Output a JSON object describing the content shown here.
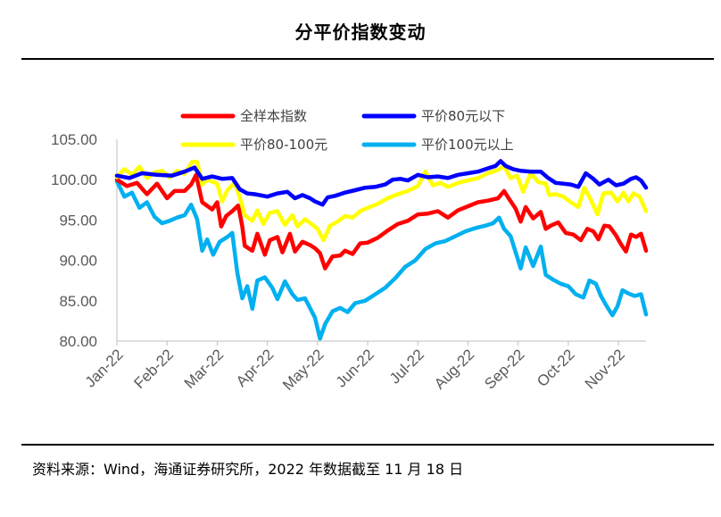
{
  "header": {
    "title": "分平价指数变动"
  },
  "footer": {
    "source": "资料来源：Wind，海通证券研究所，2022 年数据截至 11 月 18 日"
  },
  "chart_data": {
    "type": "line",
    "title": "分平价指数变动",
    "xlabel": "",
    "ylabel": "",
    "ylim": [
      80,
      105
    ],
    "yticks": [
      "80.00",
      "85.00",
      "90.00",
      "95.00",
      "100.00",
      "105.00"
    ],
    "x_categories": [
      "Jan-22",
      "Feb-22",
      "Mar-22",
      "Apr-22",
      "May-22",
      "Jun-22",
      "Jul-22",
      "Aug-22",
      "Sep-22",
      "Oct-22",
      "Nov-22"
    ],
    "x_range": [
      0,
      10.55
    ],
    "legend": {
      "placement": "top",
      "columns": 2
    },
    "series": [
      {
        "name": "全样本指数",
        "color": "#ff0000",
        "points": [
          [
            0,
            100
          ],
          [
            0.2,
            99.2
          ],
          [
            0.4,
            99.6
          ],
          [
            0.6,
            98.2
          ],
          [
            0.8,
            99.5
          ],
          [
            1.0,
            97.7
          ],
          [
            1.15,
            98.6
          ],
          [
            1.35,
            98.6
          ],
          [
            1.48,
            99.4
          ],
          [
            1.58,
            100.6
          ],
          [
            1.7,
            97.2
          ],
          [
            1.9,
            96.3
          ],
          [
            2.0,
            97.2
          ],
          [
            2.08,
            94.2
          ],
          [
            2.18,
            95.5
          ],
          [
            2.3,
            96.1
          ],
          [
            2.42,
            96.8
          ],
          [
            2.5,
            94.2
          ],
          [
            2.55,
            91.8
          ],
          [
            2.7,
            91.2
          ],
          [
            2.8,
            93.3
          ],
          [
            2.95,
            90.7
          ],
          [
            3.05,
            92.5
          ],
          [
            3.2,
            92.9
          ],
          [
            3.3,
            91.0
          ],
          [
            3.45,
            93.3
          ],
          [
            3.55,
            91.1
          ],
          [
            3.7,
            92.3
          ],
          [
            3.85,
            91.9
          ],
          [
            3.95,
            91.5
          ],
          [
            4.05,
            90.9
          ],
          [
            4.15,
            89.0
          ],
          [
            4.3,
            90.5
          ],
          [
            4.45,
            90.6
          ],
          [
            4.55,
            91.2
          ],
          [
            4.7,
            90.8
          ],
          [
            4.85,
            92.1
          ],
          [
            5.0,
            92.2
          ],
          [
            5.2,
            92.8
          ],
          [
            5.4,
            93.7
          ],
          [
            5.6,
            94.5
          ],
          [
            5.8,
            94.9
          ],
          [
            6.0,
            95.7
          ],
          [
            6.2,
            95.8
          ],
          [
            6.4,
            96.1
          ],
          [
            6.6,
            95.3
          ],
          [
            6.8,
            96.2
          ],
          [
            7.0,
            96.7
          ],
          [
            7.2,
            97.2
          ],
          [
            7.4,
            97.4
          ],
          [
            7.6,
            97.7
          ],
          [
            7.72,
            98.6
          ],
          [
            7.82,
            97.6
          ],
          [
            7.95,
            96.4
          ],
          [
            8.05,
            94.8
          ],
          [
            8.15,
            96.6
          ],
          [
            8.3,
            95.2
          ],
          [
            8.45,
            96.0
          ],
          [
            8.55,
            93.9
          ],
          [
            8.65,
            94.3
          ],
          [
            8.8,
            94.7
          ],
          [
            8.95,
            93.4
          ],
          [
            9.1,
            93.2
          ],
          [
            9.25,
            92.5
          ],
          [
            9.38,
            93.9
          ],
          [
            9.5,
            93.6
          ],
          [
            9.6,
            92.6
          ],
          [
            9.72,
            94.3
          ],
          [
            9.82,
            94.2
          ],
          [
            9.95,
            93.1
          ],
          [
            10.05,
            92.0
          ],
          [
            10.15,
            91.1
          ],
          [
            10.25,
            93.2
          ],
          [
            10.35,
            92.9
          ],
          [
            10.45,
            93.3
          ],
          [
            10.55,
            91.2
          ]
        ]
      },
      {
        "name": "平价80元以下",
        "color": "#0000ff",
        "points": [
          [
            0,
            100.5
          ],
          [
            0.25,
            100.2
          ],
          [
            0.5,
            100.8
          ],
          [
            0.8,
            100.6
          ],
          [
            1.1,
            100.5
          ],
          [
            1.35,
            101.0
          ],
          [
            1.55,
            101.5
          ],
          [
            1.7,
            100.1
          ],
          [
            1.9,
            100.4
          ],
          [
            2.1,
            100.1
          ],
          [
            2.3,
            100.2
          ],
          [
            2.45,
            98.8
          ],
          [
            2.6,
            98.3
          ],
          [
            2.75,
            98.2
          ],
          [
            3.0,
            97.9
          ],
          [
            3.2,
            98.3
          ],
          [
            3.4,
            98.5
          ],
          [
            3.55,
            97.7
          ],
          [
            3.7,
            98.1
          ],
          [
            3.85,
            97.7
          ],
          [
            3.95,
            97.3
          ],
          [
            4.1,
            96.9
          ],
          [
            4.2,
            97.8
          ],
          [
            4.35,
            98.0
          ],
          [
            4.55,
            98.4
          ],
          [
            4.75,
            98.7
          ],
          [
            4.95,
            99.0
          ],
          [
            5.15,
            99.1
          ],
          [
            5.35,
            99.4
          ],
          [
            5.5,
            100.0
          ],
          [
            5.65,
            100.1
          ],
          [
            5.8,
            99.9
          ],
          [
            6.0,
            100.6
          ],
          [
            6.2,
            100.3
          ],
          [
            6.4,
            100.4
          ],
          [
            6.6,
            100.2
          ],
          [
            6.8,
            100.6
          ],
          [
            7.0,
            100.8
          ],
          [
            7.2,
            101.0
          ],
          [
            7.4,
            101.4
          ],
          [
            7.55,
            101.7
          ],
          [
            7.65,
            102.3
          ],
          [
            7.75,
            101.7
          ],
          [
            7.9,
            101.3
          ],
          [
            8.05,
            101.1
          ],
          [
            8.25,
            101.0
          ],
          [
            8.45,
            101.0
          ],
          [
            8.6,
            100.2
          ],
          [
            8.75,
            99.6
          ],
          [
            8.9,
            99.5
          ],
          [
            9.05,
            99.4
          ],
          [
            9.2,
            99.1
          ],
          [
            9.35,
            100.8
          ],
          [
            9.5,
            100.1
          ],
          [
            9.62,
            99.4
          ],
          [
            9.8,
            100.0
          ],
          [
            9.95,
            99.3
          ],
          [
            10.1,
            99.5
          ],
          [
            10.25,
            100.1
          ],
          [
            10.35,
            100.3
          ],
          [
            10.45,
            99.9
          ],
          [
            10.55,
            99.0
          ]
        ]
      },
      {
        "name": "平价80-100元",
        "color": "#ffff00",
        "points": [
          [
            0,
            100.3
          ],
          [
            0.15,
            101.3
          ],
          [
            0.3,
            100.6
          ],
          [
            0.45,
            101.6
          ],
          [
            0.6,
            100.2
          ],
          [
            0.75,
            100.9
          ],
          [
            0.9,
            101.1
          ],
          [
            1.05,
            100.3
          ],
          [
            1.2,
            101.1
          ],
          [
            1.35,
            100.7
          ],
          [
            1.5,
            102.2
          ],
          [
            1.6,
            102.2
          ],
          [
            1.7,
            99.4
          ],
          [
            1.8,
            100.0
          ],
          [
            2.0,
            99.5
          ],
          [
            2.1,
            97.3
          ],
          [
            2.2,
            98.7
          ],
          [
            2.35,
            99.6
          ],
          [
            2.45,
            97.8
          ],
          [
            2.55,
            95.6
          ],
          [
            2.7,
            94.9
          ],
          [
            2.8,
            96.2
          ],
          [
            2.92,
            94.5
          ],
          [
            3.05,
            95.9
          ],
          [
            3.2,
            96.1
          ],
          [
            3.35,
            94.4
          ],
          [
            3.5,
            95.6
          ],
          [
            3.6,
            94.2
          ],
          [
            3.75,
            95.1
          ],
          [
            3.9,
            94.4
          ],
          [
            4.0,
            93.9
          ],
          [
            4.12,
            92.5
          ],
          [
            4.25,
            94.3
          ],
          [
            4.4,
            94.8
          ],
          [
            4.55,
            95.5
          ],
          [
            4.7,
            95.3
          ],
          [
            4.85,
            96.1
          ],
          [
            5.0,
            96.5
          ],
          [
            5.2,
            97.0
          ],
          [
            5.4,
            97.7
          ],
          [
            5.6,
            98.2
          ],
          [
            5.8,
            98.6
          ],
          [
            6.0,
            99.2
          ],
          [
            6.15,
            101.0
          ],
          [
            6.3,
            99.3
          ],
          [
            6.45,
            99.6
          ],
          [
            6.6,
            99.1
          ],
          [
            6.8,
            99.6
          ],
          [
            7.0,
            99.9
          ],
          [
            7.2,
            100.2
          ],
          [
            7.4,
            100.8
          ],
          [
            7.6,
            101.2
          ],
          [
            7.72,
            101.7
          ],
          [
            7.85,
            100.2
          ],
          [
            7.98,
            100.5
          ],
          [
            8.1,
            98.5
          ],
          [
            8.25,
            100.8
          ],
          [
            8.4,
            99.7
          ],
          [
            8.55,
            99.5
          ],
          [
            8.62,
            98.1
          ],
          [
            8.75,
            98.2
          ],
          [
            8.9,
            97.9
          ],
          [
            9.05,
            97.2
          ],
          [
            9.2,
            96.6
          ],
          [
            9.32,
            99.0
          ],
          [
            9.45,
            97.5
          ],
          [
            9.58,
            95.7
          ],
          [
            9.7,
            98.3
          ],
          [
            9.85,
            98.4
          ],
          [
            9.98,
            97.3
          ],
          [
            10.1,
            98.4
          ],
          [
            10.2,
            97.3
          ],
          [
            10.3,
            98.3
          ],
          [
            10.42,
            97.9
          ],
          [
            10.55,
            96.1
          ]
        ]
      },
      {
        "name": "平价100元以上",
        "color": "#00b0f0",
        "points": [
          [
            0,
            99.8
          ],
          [
            0.15,
            97.9
          ],
          [
            0.3,
            98.4
          ],
          [
            0.45,
            96.5
          ],
          [
            0.6,
            97.2
          ],
          [
            0.75,
            95.4
          ],
          [
            0.9,
            94.6
          ],
          [
            1.05,
            94.9
          ],
          [
            1.2,
            95.3
          ],
          [
            1.35,
            95.6
          ],
          [
            1.48,
            96.9
          ],
          [
            1.6,
            95.1
          ],
          [
            1.7,
            91.2
          ],
          [
            1.8,
            92.6
          ],
          [
            1.92,
            90.7
          ],
          [
            2.05,
            92.3
          ],
          [
            2.2,
            92.9
          ],
          [
            2.3,
            93.4
          ],
          [
            2.4,
            88.5
          ],
          [
            2.5,
            85.3
          ],
          [
            2.6,
            86.8
          ],
          [
            2.7,
            84.0
          ],
          [
            2.8,
            87.5
          ],
          [
            2.95,
            87.9
          ],
          [
            3.1,
            86.6
          ],
          [
            3.2,
            85.2
          ],
          [
            3.35,
            87.4
          ],
          [
            3.5,
            85.8
          ],
          [
            3.6,
            85.1
          ],
          [
            3.75,
            85.3
          ],
          [
            3.85,
            84.1
          ],
          [
            3.95,
            82.9
          ],
          [
            4.05,
            80.3
          ],
          [
            4.15,
            82.1
          ],
          [
            4.3,
            83.7
          ],
          [
            4.45,
            84.1
          ],
          [
            4.6,
            83.6
          ],
          [
            4.75,
            84.7
          ],
          [
            4.95,
            85.0
          ],
          [
            5.15,
            85.8
          ],
          [
            5.35,
            86.6
          ],
          [
            5.55,
            87.8
          ],
          [
            5.75,
            89.2
          ],
          [
            5.95,
            90.0
          ],
          [
            6.15,
            91.4
          ],
          [
            6.35,
            92.1
          ],
          [
            6.55,
            92.4
          ],
          [
            6.75,
            93.0
          ],
          [
            6.95,
            93.6
          ],
          [
            7.15,
            94.0
          ],
          [
            7.35,
            94.3
          ],
          [
            7.5,
            94.6
          ],
          [
            7.62,
            95.3
          ],
          [
            7.72,
            93.9
          ],
          [
            7.85,
            93.0
          ],
          [
            7.95,
            91.0
          ],
          [
            8.05,
            89.0
          ],
          [
            8.15,
            91.6
          ],
          [
            8.3,
            89.3
          ],
          [
            8.45,
            91.7
          ],
          [
            8.55,
            88.2
          ],
          [
            8.7,
            87.6
          ],
          [
            8.85,
            87.1
          ],
          [
            9.0,
            86.8
          ],
          [
            9.15,
            85.8
          ],
          [
            9.3,
            85.4
          ],
          [
            9.42,
            87.5
          ],
          [
            9.55,
            87.1
          ],
          [
            9.65,
            85.6
          ],
          [
            9.75,
            84.5
          ],
          [
            9.88,
            83.2
          ],
          [
            9.98,
            84.3
          ],
          [
            10.08,
            86.3
          ],
          [
            10.2,
            85.9
          ],
          [
            10.32,
            85.6
          ],
          [
            10.45,
            85.8
          ],
          [
            10.55,
            83.3
          ]
        ]
      }
    ]
  }
}
